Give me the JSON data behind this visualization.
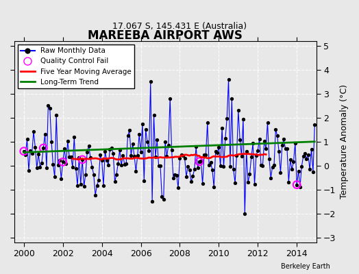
{
  "title": "MAREEBA AIRPORT AWS",
  "subtitle": "17.067 S, 145.431 E (Australia)",
  "ylabel": "Temperature Anomaly (°C)",
  "credit": "Berkeley Earth",
  "xlim": [
    1999.5,
    2015.0
  ],
  "ylim": [
    -3.2,
    5.2
  ],
  "yticks": [
    -3,
    -2,
    -1,
    0,
    1,
    2,
    3,
    4,
    5
  ],
  "xticks": [
    2000,
    2002,
    2004,
    2006,
    2008,
    2010,
    2012,
    2014
  ],
  "bg_color": "#e8e8e8",
  "plot_bg_color": "#e8e8e8",
  "raw_line_color": "blue",
  "raw_marker_color": "black",
  "qc_fail_color": "magenta",
  "moving_avg_color": "red",
  "trend_color": "green",
  "seed": 42,
  "n_months": 180,
  "start_year": 2000.0,
  "qc_fail_indices": [
    0,
    12,
    24,
    36,
    108,
    168
  ],
  "long_term_trend_slope": 0.03,
  "long_term_trend_intercept": 0.55
}
